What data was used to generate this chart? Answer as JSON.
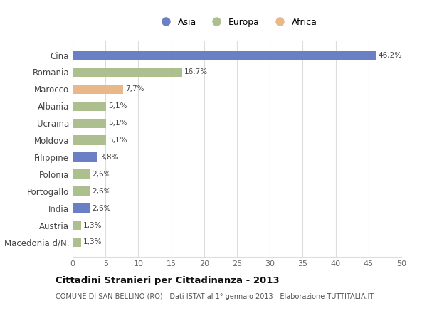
{
  "categories": [
    "Macedonia d/N.",
    "Austria",
    "India",
    "Portogallo",
    "Polonia",
    "Filippine",
    "Moldova",
    "Ucraina",
    "Albania",
    "Marocco",
    "Romania",
    "Cina"
  ],
  "values": [
    1.3,
    1.3,
    2.6,
    2.6,
    2.6,
    3.8,
    5.1,
    5.1,
    5.1,
    7.7,
    16.7,
    46.2
  ],
  "labels": [
    "1,3%",
    "1,3%",
    "2,6%",
    "2,6%",
    "2,6%",
    "3,8%",
    "5,1%",
    "5,1%",
    "5,1%",
    "7,7%",
    "16,7%",
    "46,2%"
  ],
  "colors": [
    "#adbf8e",
    "#adbf8e",
    "#6b80c4",
    "#adbf8e",
    "#adbf8e",
    "#6b80c4",
    "#adbf8e",
    "#adbf8e",
    "#adbf8e",
    "#e8b88a",
    "#adbf8e",
    "#6b80c4"
  ],
  "continent_colors": {
    "Asia": "#6b80c4",
    "Europa": "#adbf8e",
    "Africa": "#e8b88a"
  },
  "title": "Cittadini Stranieri per Cittadinanza - 2013",
  "subtitle": "COMUNE DI SAN BELLINO (RO) - Dati ISTAT al 1° gennaio 2013 - Elaborazione TUTTITALIA.IT",
  "xlim": [
    0,
    50
  ],
  "xticks": [
    0,
    5,
    10,
    15,
    20,
    25,
    30,
    35,
    40,
    45,
    50
  ],
  "background_color": "#ffffff",
  "grid_color": "#dddddd",
  "bar_height": 0.55
}
